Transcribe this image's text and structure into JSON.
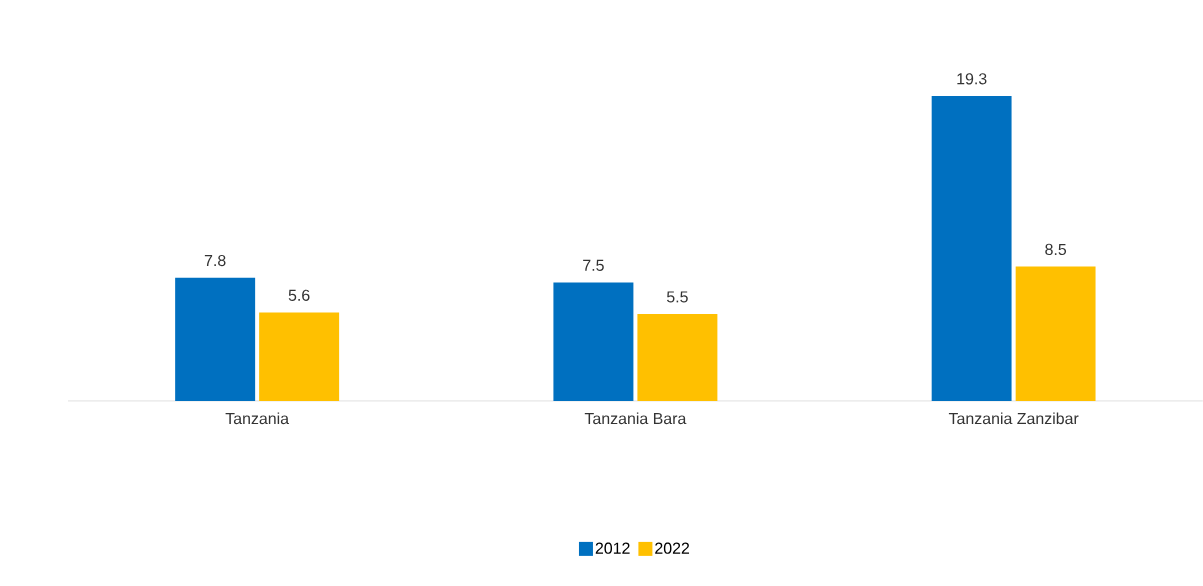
{
  "chart_data": {
    "type": "bar",
    "categories": [
      "Tanzania",
      "Tanzania Bara",
      "Tanzania Zanzibar"
    ],
    "series": [
      {
        "name": "2012",
        "color": "#0070c0",
        "values": [
          7.8,
          7.5,
          19.3
        ]
      },
      {
        "name": "2022",
        "color": "#ffc000",
        "values": [
          5.6,
          5.5,
          8.5
        ]
      }
    ],
    "data_labels": true,
    "legend": "bottom",
    "grid": false
  }
}
